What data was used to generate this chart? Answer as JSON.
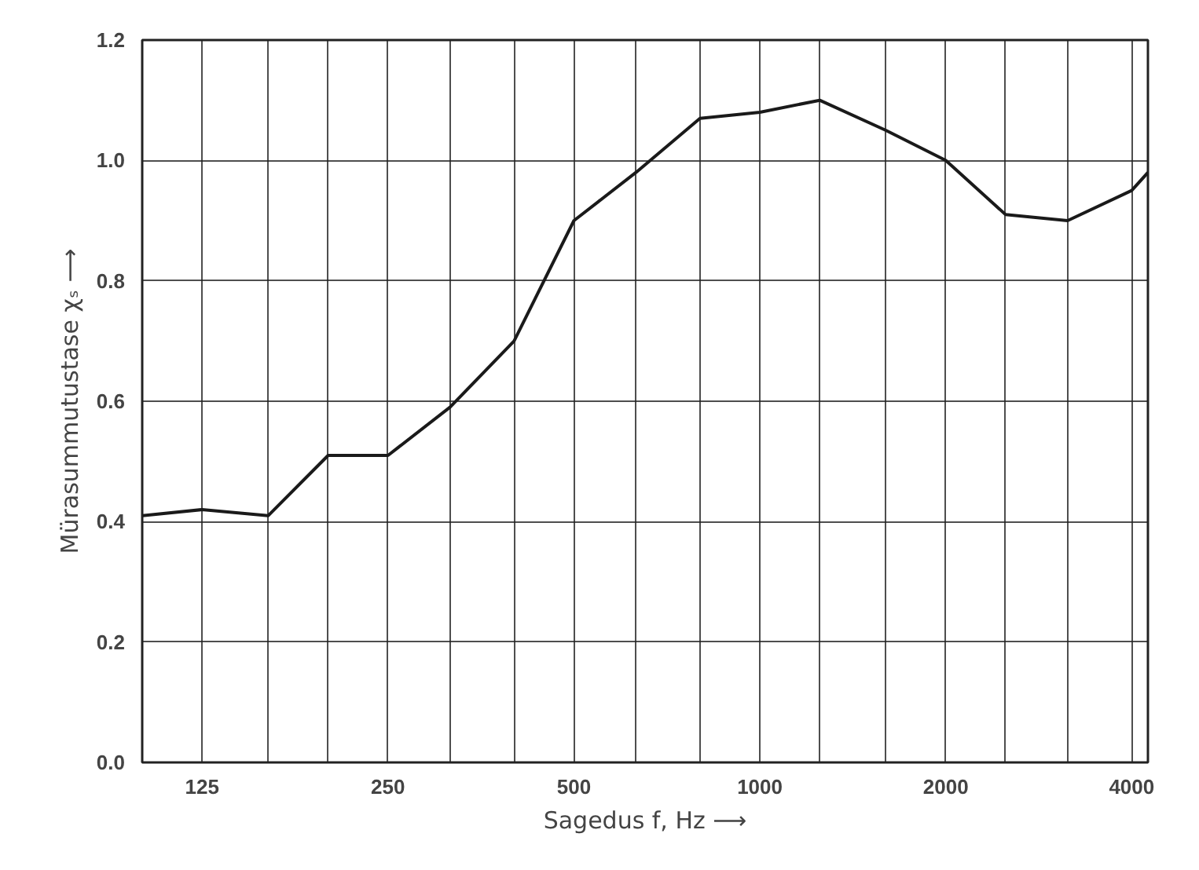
{
  "chart_data": {
    "type": "line",
    "xlabel": "Sagedus f, Hz ⟶",
    "ylabel": "Mürasummutustase χₛ ⟶",
    "log": "x",
    "x": [
      100,
      125,
      160,
      200,
      250,
      315,
      400,
      500,
      630,
      800,
      1000,
      1250,
      1600,
      2000,
      2500,
      3150,
      4000,
      4250
    ],
    "series": [
      {
        "color": "#1a1a1a",
        "values": [
          0.41,
          0.42,
          0.41,
          0.51,
          0.51,
          0.59,
          0.7,
          0.9,
          0.98,
          1.07,
          1.08,
          1.1,
          1.05,
          1.0,
          0.91,
          0.9,
          0.95,
          0.98
        ]
      }
    ],
    "xlim": [
      100,
      4250
    ],
    "xticks": [
      {
        "value": 125,
        "label": "125"
      },
      {
        "value": 160,
        "label": null
      },
      {
        "value": 200,
        "label": null
      },
      {
        "value": 250,
        "label": "250"
      },
      {
        "value": 315,
        "label": null
      },
      {
        "value": 400,
        "label": null
      },
      {
        "value": 500,
        "label": "500"
      },
      {
        "value": 630,
        "label": null
      },
      {
        "value": 800,
        "label": null
      },
      {
        "value": 1000,
        "label": "1000"
      },
      {
        "value": 1250,
        "label": null
      },
      {
        "value": 1600,
        "label": null
      },
      {
        "value": 2000,
        "label": "2000"
      },
      {
        "value": 2500,
        "label": null
      },
      {
        "value": 3150,
        "label": null
      },
      {
        "value": 4000,
        "label": "4000"
      }
    ],
    "ylim": [
      0,
      1.2
    ],
    "yticks": [
      {
        "value": 0,
        "label": "0.0"
      },
      {
        "value": 0.2,
        "label": "0.2"
      },
      {
        "value": 0.4,
        "label": "0.4"
      },
      {
        "value": 0.6,
        "label": "0.6"
      },
      {
        "value": 0.8,
        "label": "0.8"
      },
      {
        "value": 1.0,
        "label": "1.0"
      },
      {
        "value": 1.2,
        "label": "1.2"
      }
    ],
    "grid": true,
    "marker": "none",
    "line_style": "solid"
  }
}
